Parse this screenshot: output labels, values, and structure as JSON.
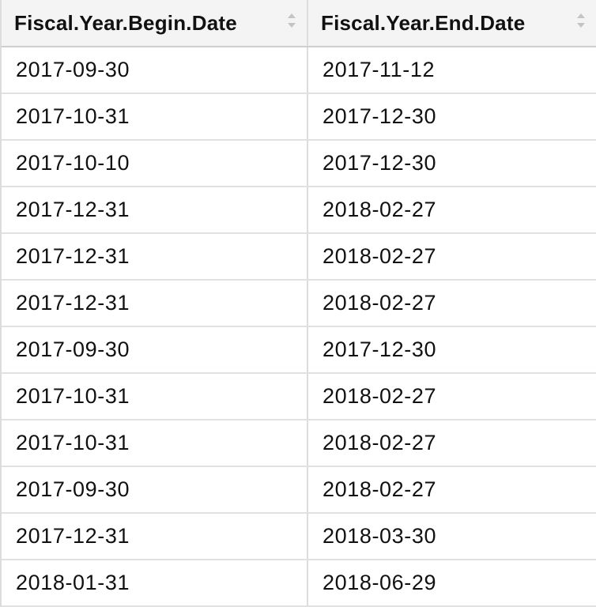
{
  "table": {
    "headers": [
      "Fiscal.Year.Begin.Date",
      "Fiscal.Year.End.Date"
    ],
    "rows": [
      [
        "2017-09-30",
        "2017-11-12"
      ],
      [
        "2017-10-31",
        "2017-12-30"
      ],
      [
        "2017-10-10",
        "2017-12-30"
      ],
      [
        "2017-12-31",
        "2018-02-27"
      ],
      [
        "2017-12-31",
        "2018-02-27"
      ],
      [
        "2017-12-31",
        "2018-02-27"
      ],
      [
        "2017-09-30",
        "2017-12-30"
      ],
      [
        "2017-10-31",
        "2018-02-27"
      ],
      [
        "2017-10-31",
        "2018-02-27"
      ],
      [
        "2017-09-30",
        "2018-02-27"
      ],
      [
        "2017-12-31",
        "2018-03-30"
      ],
      [
        "2018-01-31",
        "2018-06-29"
      ]
    ],
    "sort_icon": "sort-up-down-icon",
    "colors": {
      "header_bg": "#f4f4f4",
      "border": "#dcdcdc",
      "text": "#111111",
      "sort_icon": "#c4c4c4"
    }
  }
}
